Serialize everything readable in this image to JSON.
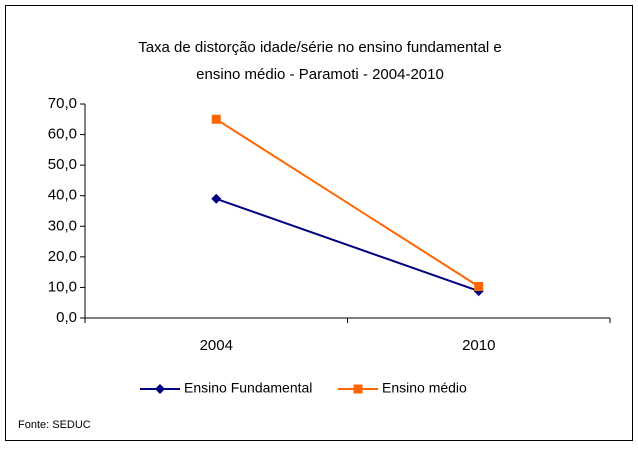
{
  "chart_data": {
    "type": "line",
    "title": [
      "Taxa de distorção idade/série no ensino fundamental e",
      "ensino médio - Paramoti -  2004-2010"
    ],
    "categories": [
      "2004",
      "2010"
    ],
    "series": [
      {
        "name": "Ensino Fundamental",
        "color": "#000080",
        "marker": "diamond",
        "values": [
          39.0,
          8.8
        ]
      },
      {
        "name": "Ensino médio",
        "color": "#ff6600",
        "marker": "square",
        "values": [
          65.0,
          10.3
        ]
      }
    ],
    "ylim": [
      0,
      70
    ],
    "yticks": [
      {
        "value": 0,
        "label": "0,0"
      },
      {
        "value": 10,
        "label": "10,0"
      },
      {
        "value": 20,
        "label": "20,0"
      },
      {
        "value": 30,
        "label": "30,0"
      },
      {
        "value": 40,
        "label": "40,0"
      },
      {
        "value": 50,
        "label": "50,0"
      },
      {
        "value": 60,
        "label": "60,0"
      },
      {
        "value": 70,
        "label": "70,0"
      }
    ],
    "legend": "bottom",
    "source": "Fonte: SEDUC"
  }
}
